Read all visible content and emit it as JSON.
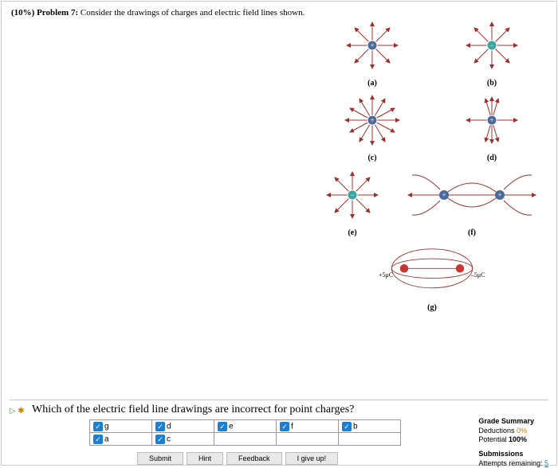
{
  "header": {
    "weight": "(10%)",
    "label": "Problem 7:",
    "text": "Consider the drawings of charges and electric field lines shown."
  },
  "figures": {
    "labels": {
      "a": "(a)",
      "b": "(b)",
      "c": "(c)",
      "d": "(d)",
      "e": "(e)",
      "f": "(f)",
      "g": "(g)"
    },
    "g_left": "+5μC",
    "g_right": "–5μC",
    "colors": {
      "arrow": "#a03030",
      "plus_fill": "#4a6a9a",
      "minus_fill": "#3aa5a0",
      "red_dot": "#cc3333"
    }
  },
  "question": {
    "text": "Which of the electric field line drawings are incorrect for point charges?",
    "icons": {
      "play": "▷",
      "close": "✱"
    },
    "options": [
      [
        {
          "l": "g",
          "c": true
        },
        {
          "l": "d",
          "c": true
        },
        {
          "l": "e",
          "c": true
        },
        {
          "l": "f",
          "c": true
        },
        {
          "l": "b",
          "c": true
        }
      ],
      [
        {
          "l": "a",
          "c": true
        },
        {
          "l": "c",
          "c": true
        },
        {
          "l": "",
          "c": false
        },
        {
          "l": "",
          "c": false
        },
        {
          "l": "",
          "c": false
        }
      ]
    ]
  },
  "buttons": {
    "submit": "Submit",
    "hint": "Hint",
    "feedback": "Feedback",
    "giveup": "I give up!"
  },
  "grade": {
    "hdr": "Grade Summary",
    "ded_label": "Deductions",
    "ded_val": "0%",
    "pot_label": "Potential",
    "pot_val": "100%",
    "sub_hdr": "Submissions",
    "att_label": "Attempts remaining:",
    "att_val": "5"
  }
}
